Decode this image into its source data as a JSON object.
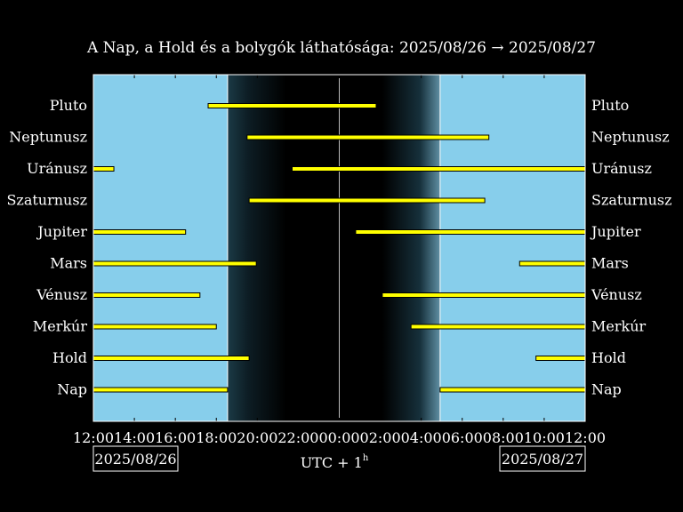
{
  "chart_data": {
    "type": "bar",
    "title": "A Nap, a Hold és a bolygók láthatósága: 2025/08/26 → 2025/08/27",
    "xlabel": "UTC + 1",
    "xlabel_sup": "h",
    "x_unit": "hours since 2025/08/26 12:00 (UTC+1)",
    "xlim": [
      0,
      24
    ],
    "xticks": [
      0,
      2,
      4,
      6,
      8,
      10,
      12,
      14,
      16,
      18,
      20,
      22,
      24
    ],
    "xtick_labels": [
      "12:00",
      "14:00",
      "16:00",
      "18:00",
      "20:00",
      "22:00",
      "00:00",
      "02:00",
      "04:00",
      "06:00",
      "08:00",
      "10:00",
      "12:00"
    ],
    "date_left": "2025/08/26",
    "date_right": "2025/08/27",
    "sunset": 6.55,
    "sunrise": 16.92,
    "twilight_ranges": [
      [
        6.55,
        9.4
      ],
      [
        14.1,
        16.92
      ]
    ],
    "midnight": 12,
    "colors": {
      "day": "#87ceeb",
      "night": "#000000",
      "bar": "#ffff00",
      "bar_edge": "#000000",
      "frame": "#ffffff"
    },
    "categories": [
      "Pluto",
      "Neptunusz",
      "Uránusz",
      "Szaturnusz",
      "Jupiter",
      "Mars",
      "Vénusz",
      "Merkúr",
      "Hold",
      "Nap"
    ],
    "intervals": [
      [
        [
          5.6,
          13.8
        ]
      ],
      [
        [
          7.5,
          19.3
        ]
      ],
      [
        [
          0,
          1.0
        ],
        [
          9.7,
          24
        ]
      ],
      [
        [
          7.6,
          19.1
        ]
      ],
      [
        [
          0,
          4.5
        ],
        [
          12.8,
          24
        ]
      ],
      [
        [
          0,
          7.95
        ],
        [
          20.8,
          24
        ]
      ],
      [
        [
          0,
          5.2
        ],
        [
          14.1,
          24
        ]
      ],
      [
        [
          0,
          6.0
        ],
        [
          15.5,
          24
        ]
      ],
      [
        [
          0,
          7.6
        ],
        [
          21.6,
          24
        ]
      ],
      [
        [
          0,
          6.55
        ],
        [
          16.92,
          24
        ]
      ]
    ]
  }
}
